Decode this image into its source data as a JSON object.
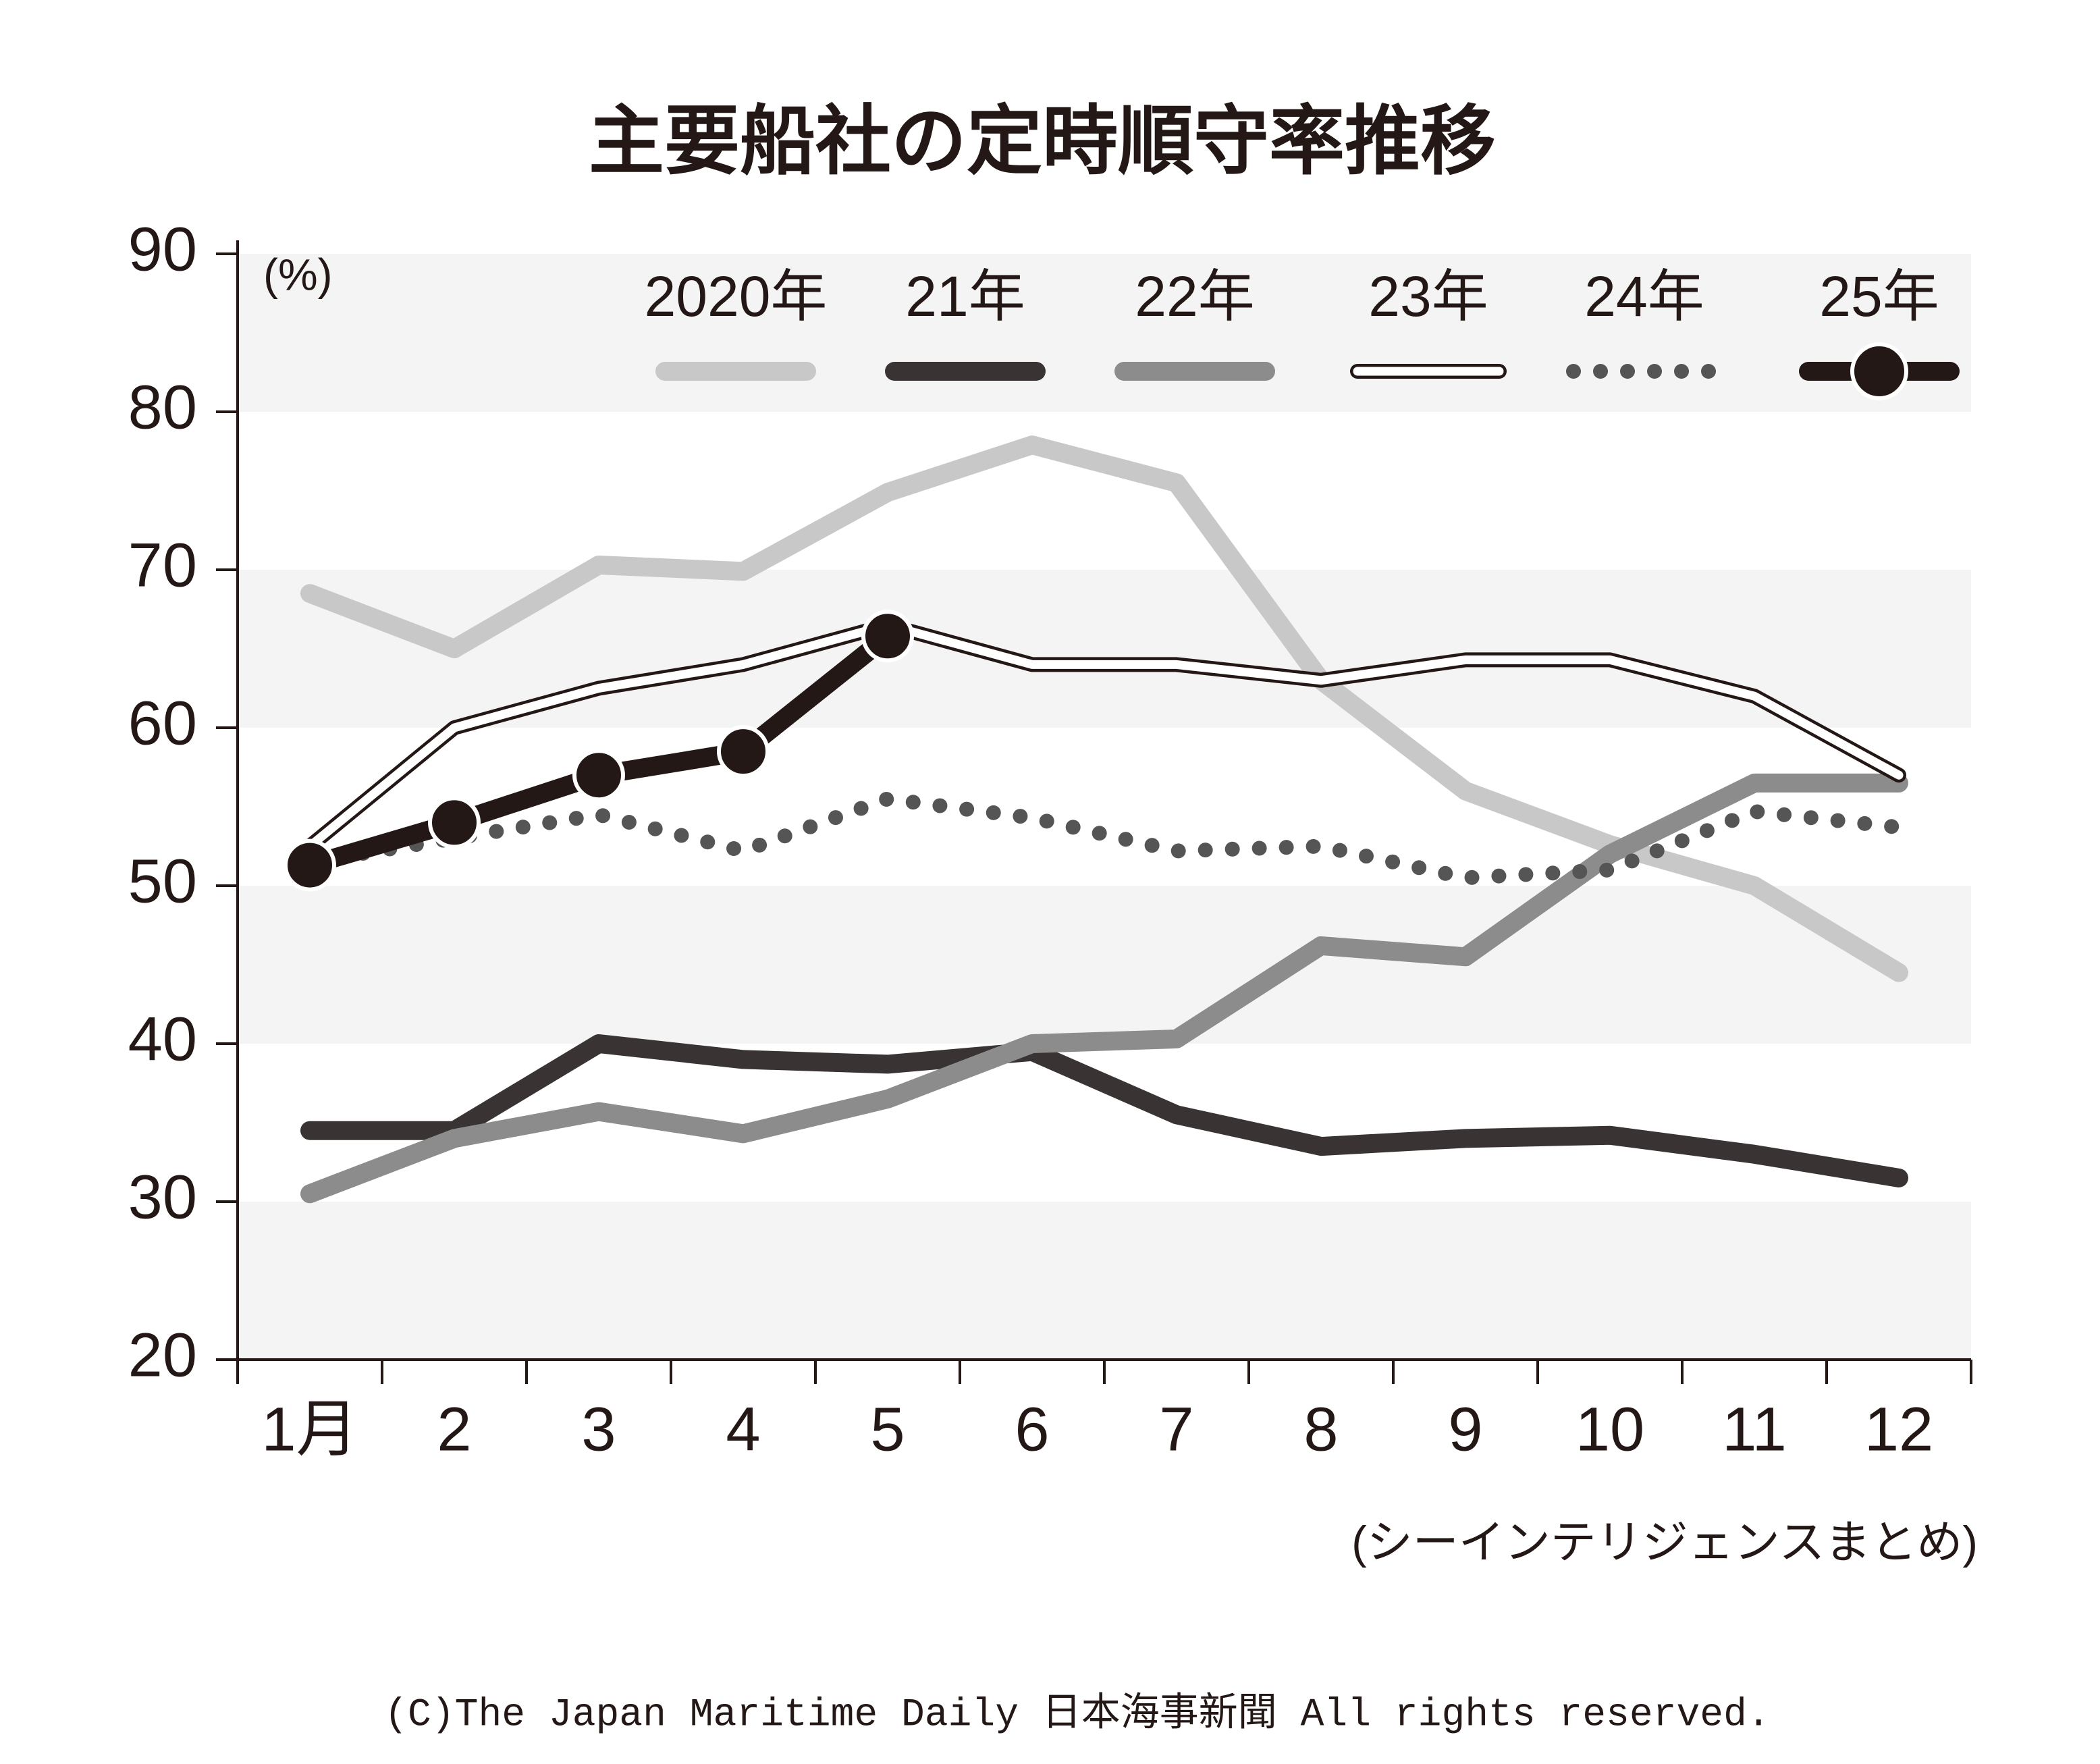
{
  "chart_data": {
    "type": "line",
    "title": "主要船社の定時順守率推移",
    "y_unit_label": "(%)",
    "source": "(シーインテリジェンスまとめ)",
    "copyright": "(C)The Japan Maritime Daily 日本海事新聞 All rights reserved.",
    "categories": [
      "1月",
      "2",
      "3",
      "4",
      "5",
      "6",
      "7",
      "8",
      "9",
      "10",
      "11",
      "12"
    ],
    "ylim": [
      20,
      90
    ],
    "yticks": [
      20,
      30,
      40,
      50,
      60,
      70,
      80,
      90
    ],
    "bands": true,
    "series": [
      {
        "name": "2020年",
        "color": "#c8c8c8",
        "style": "solid",
        "values": [
          68.5,
          65,
          70.3,
          69.9,
          74.9,
          77.9,
          75.5,
          63,
          56,
          52.6,
          50,
          44.5
        ]
      },
      {
        "name": "21年",
        "color": "#3a3334",
        "style": "solid",
        "values": [
          34.5,
          34.5,
          40,
          39,
          38.7,
          39.5,
          35.5,
          33.5,
          34,
          34.2,
          33,
          31.5
        ]
      },
      {
        "name": "22年",
        "color": "#8c8c8c",
        "style": "solid",
        "values": [
          30.5,
          34,
          35.7,
          34.3,
          36.5,
          40,
          40.3,
          46.2,
          45.5,
          52,
          56.5,
          56.5
        ]
      },
      {
        "name": "23年",
        "color": "#231815",
        "style": "outline",
        "values": [
          52.5,
          60,
          62.5,
          64,
          66.5,
          64,
          64,
          63,
          64.3,
          64.3,
          62,
          57
        ]
      },
      {
        "name": "24年",
        "color": "#555555",
        "style": "dotted",
        "values": [
          51.5,
          53,
          54.5,
          52.2,
          55.5,
          54.3,
          52.2,
          52.5,
          50.5,
          51,
          54.7,
          53.7
        ]
      },
      {
        "name": "25年",
        "color": "#231815",
        "style": "markers",
        "values": [
          51.3,
          54,
          57,
          58.5,
          65.8,
          null,
          null,
          null,
          null,
          null,
          null,
          null
        ]
      }
    ]
  }
}
